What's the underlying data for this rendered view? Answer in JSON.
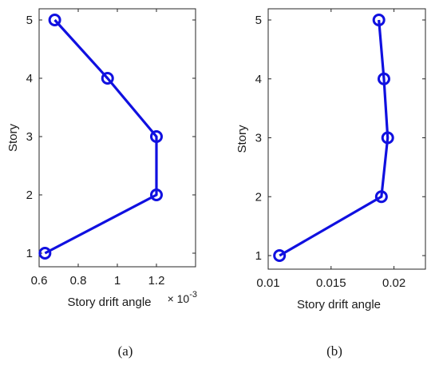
{
  "figure": {
    "panel_captions": [
      "(a)",
      "(b)"
    ]
  },
  "chart_data": [
    {
      "type": "line",
      "series": [
        {
          "x": [
            0.00063,
            0.0012,
            0.0012,
            0.00095,
            0.00068
          ],
          "y": [
            1,
            2,
            3,
            4,
            5
          ],
          "color": "#1010e0",
          "marker": "circle"
        }
      ],
      "title": "",
      "xlabel": "Story drift angle",
      "ylabel": "Story",
      "x_exponent_label": "× 10",
      "x_exponent_power": "-3",
      "xlim": [
        0.0006,
        0.0014
      ],
      "ylim": [
        1,
        5
      ],
      "xticks": [
        0.0006,
        0.0008,
        0.001,
        0.0012
      ],
      "xtick_labels": [
        "0.6",
        "0.8",
        "1",
        "1.2"
      ],
      "yticks": [
        1,
        2,
        3,
        4,
        5
      ],
      "ytick_labels": [
        "1",
        "2",
        "3",
        "4",
        "5"
      ],
      "grid": false
    },
    {
      "type": "line",
      "series": [
        {
          "x": [
            0.0109,
            0.019,
            0.0195,
            0.0192,
            0.0188
          ],
          "y": [
            1,
            2,
            3,
            4,
            5
          ],
          "color": "#1010e0",
          "marker": "circle"
        }
      ],
      "title": "",
      "xlabel": "Story drift angle",
      "ylabel": "Story",
      "xlim": [
        0.01,
        0.0225
      ],
      "ylim": [
        1,
        5
      ],
      "xticks": [
        0.01,
        0.015,
        0.02
      ],
      "xtick_labels": [
        "0.01",
        "0.015",
        "0.02"
      ],
      "yticks": [
        1,
        2,
        3,
        4,
        5
      ],
      "ytick_labels": [
        "1",
        "2",
        "3",
        "4",
        "5"
      ],
      "grid": false
    }
  ]
}
